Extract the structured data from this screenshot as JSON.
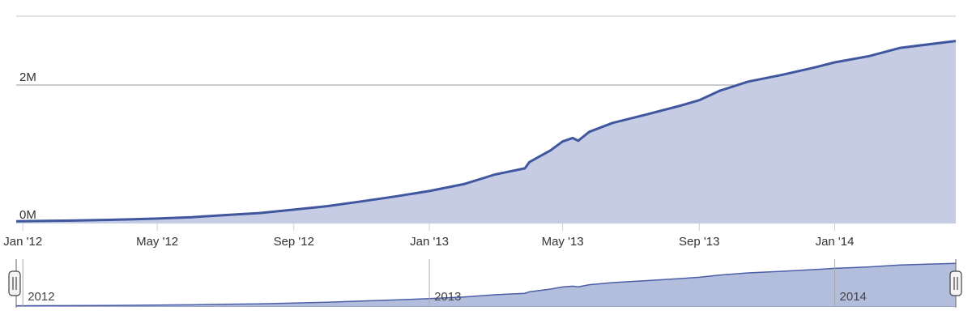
{
  "chart_data": {
    "type": "area",
    "title": "",
    "xlabel": "",
    "ylabel": "",
    "x_range": [
      "2011-12-26",
      "2014-04-20"
    ],
    "ylim": [
      0,
      3000000
    ],
    "grid": true,
    "legend": "none",
    "y_tick_labels": [
      {
        "value": 0,
        "label": "0M"
      },
      {
        "value": 2000000,
        "label": "2M"
      }
    ],
    "x_tick_labels": [
      {
        "date": "2012-01-01",
        "label": "Jan '12"
      },
      {
        "date": "2012-05-01",
        "label": "May '12"
      },
      {
        "date": "2012-09-01",
        "label": "Sep '12"
      },
      {
        "date": "2013-01-01",
        "label": "Jan '13"
      },
      {
        "date": "2013-05-01",
        "label": "May '13"
      },
      {
        "date": "2013-09-01",
        "label": "Sep '13"
      },
      {
        "date": "2014-01-01",
        "label": "Jan '14"
      }
    ],
    "navigator_labels": [
      {
        "date": "2012-01-01",
        "label": "2012"
      },
      {
        "date": "2013-01-01",
        "label": "2013"
      },
      {
        "date": "2014-01-01",
        "label": "2014"
      }
    ],
    "series": [
      {
        "color": "#4057a0",
        "fill": "#c5cce3",
        "points": [
          [
            "2011-12-26",
            20000
          ],
          [
            "2012-01-15",
            25000
          ],
          [
            "2012-02-15",
            30000
          ],
          [
            "2012-03-15",
            40000
          ],
          [
            "2012-04-10",
            50000
          ],
          [
            "2012-05-01",
            60000
          ],
          [
            "2012-06-01",
            80000
          ],
          [
            "2012-07-01",
            110000
          ],
          [
            "2012-08-01",
            140000
          ],
          [
            "2012-09-01",
            190000
          ],
          [
            "2012-10-01",
            240000
          ],
          [
            "2012-11-01",
            310000
          ],
          [
            "2012-12-01",
            380000
          ],
          [
            "2013-01-01",
            460000
          ],
          [
            "2013-02-01",
            560000
          ],
          [
            "2013-03-01",
            700000
          ],
          [
            "2013-03-28",
            790000
          ],
          [
            "2013-04-01",
            880000
          ],
          [
            "2013-04-20",
            1050000
          ],
          [
            "2013-05-01",
            1180000
          ],
          [
            "2013-05-10",
            1230000
          ],
          [
            "2013-05-15",
            1190000
          ],
          [
            "2013-05-25",
            1320000
          ],
          [
            "2013-06-15",
            1450000
          ],
          [
            "2013-07-15",
            1570000
          ],
          [
            "2013-08-15",
            1700000
          ],
          [
            "2013-09-01",
            1780000
          ],
          [
            "2013-09-20",
            1920000
          ],
          [
            "2013-10-15",
            2050000
          ],
          [
            "2013-11-15",
            2150000
          ],
          [
            "2013-12-15",
            2260000
          ],
          [
            "2014-01-01",
            2330000
          ],
          [
            "2014-02-01",
            2420000
          ],
          [
            "2014-03-01",
            2540000
          ],
          [
            "2014-04-20",
            2640000
          ]
        ]
      }
    ]
  }
}
